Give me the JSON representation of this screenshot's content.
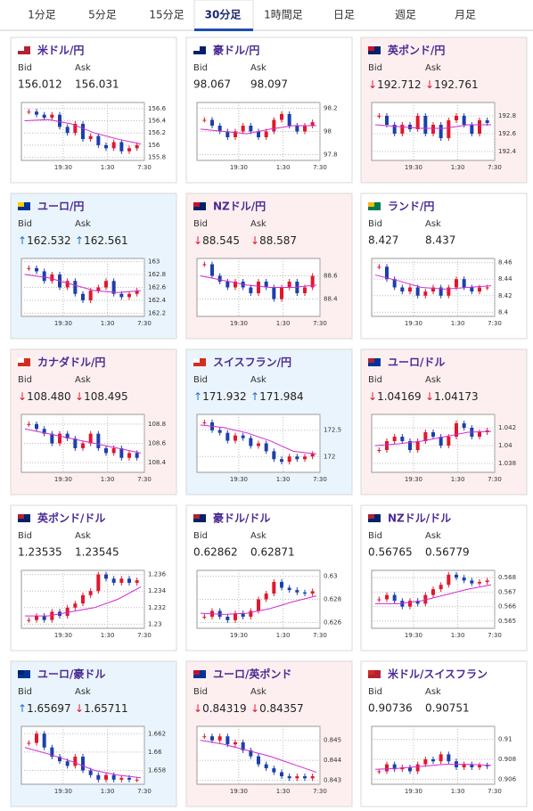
{
  "tabs": [
    "1分足",
    "5分足",
    "15分足",
    "30分足",
    "1時間足",
    "日足",
    "週足",
    "月足"
  ],
  "active_tab": 3,
  "labels": {
    "bid": "Bid",
    "ask": "Ask"
  },
  "x_labels": [
    "19:30",
    "1:30",
    "7:30"
  ],
  "colors": {
    "up": "#e0182d",
    "down": "#1b3fae",
    "ma": "#d22ad2",
    "arrow_up": "#1b6fd0",
    "arrow_down": "#e0182d"
  },
  "cards": [
    {
      "title": "米ドル/円",
      "bid": "156.012",
      "ask": "156.031",
      "background": "#ffffff",
      "chart": {
        "ylim": [
          155.75,
          156.7
        ],
        "yticks": [
          155.8,
          156,
          156.2,
          156.4,
          156.6
        ],
        "close": [
          156.55,
          156.5,
          156.45,
          156.5,
          156.3,
          156.2,
          156.35,
          156.1,
          156.15,
          156.0,
          155.95,
          156.05,
          155.9,
          155.95,
          156.0
        ],
        "ma": [
          156.4,
          156.42,
          156.35,
          156.2,
          156.1,
          156.02
        ]
      }
    },
    {
      "title": "豪ドル/円",
      "bid": "98.067",
      "ask": "98.097",
      "background": "#ffffff",
      "chart": {
        "ylim": [
          97.75,
          98.25
        ],
        "yticks": [
          97.8,
          98,
          98.2
        ],
        "close": [
          98.1,
          98.05,
          98.0,
          97.95,
          98.0,
          98.05,
          98.0,
          97.95,
          98.0,
          98.1,
          98.15,
          98.05,
          98.0,
          98.05,
          98.08
        ],
        "ma": [
          98.02,
          98.0,
          97.98,
          98.02,
          98.05,
          98.05
        ]
      }
    },
    {
      "title": "英ポンド/円",
      "bid": "↓192.712",
      "ask": "↓192.761",
      "background": "#fdeff0",
      "chart": {
        "ylim": [
          192.3,
          192.95
        ],
        "yticks": [
          192.4,
          192.6,
          192.8
        ],
        "close": [
          192.8,
          192.7,
          192.6,
          192.7,
          192.65,
          192.8,
          192.6,
          192.7,
          192.55,
          192.75,
          192.8,
          192.7,
          192.6,
          192.75,
          192.72
        ],
        "ma": [
          192.7,
          192.68,
          192.66,
          192.66,
          192.7,
          192.7
        ]
      }
    },
    {
      "title": "ユーロ/円",
      "bid": "↑162.532",
      "ask": "↑162.561",
      "background": "#eaf4fc",
      "chart": {
        "ylim": [
          162.15,
          163.05
        ],
        "yticks": [
          162.2,
          162.4,
          162.6,
          162.8,
          163
        ],
        "close": [
          162.9,
          162.85,
          162.7,
          162.8,
          162.6,
          162.7,
          162.5,
          162.4,
          162.55,
          162.6,
          162.7,
          162.5,
          162.45,
          162.5,
          162.55
        ],
        "ma": [
          162.8,
          162.75,
          162.65,
          162.55,
          162.52,
          162.55
        ]
      }
    },
    {
      "title": "NZドル/円",
      "bid": "↓88.545",
      "ask": "↓88.587",
      "background": "#fdeff0",
      "chart": {
        "ylim": [
          88.25,
          88.75
        ],
        "yticks": [
          88.4,
          88.6
        ],
        "close": [
          88.7,
          88.6,
          88.55,
          88.5,
          88.55,
          88.5,
          88.45,
          88.55,
          88.5,
          88.4,
          88.5,
          88.55,
          88.45,
          88.5,
          88.6
        ],
        "ma": [
          88.6,
          88.56,
          88.52,
          88.5,
          88.5,
          88.52
        ]
      }
    },
    {
      "title": "ランド/円",
      "bid": "8.427",
      "ask": "8.437",
      "background": "#ffffff",
      "chart": {
        "ylim": [
          8.395,
          8.465
        ],
        "yticks": [
          8.4,
          8.42,
          8.44,
          8.46
        ],
        "close": [
          8.455,
          8.44,
          8.43,
          8.425,
          8.43,
          8.42,
          8.425,
          8.43,
          8.42,
          8.43,
          8.44,
          8.43,
          8.425,
          8.43,
          8.43
        ],
        "ma": [
          8.445,
          8.438,
          8.43,
          8.428,
          8.43,
          8.432
        ]
      }
    },
    {
      "title": "カナダドル/円",
      "bid": "↓108.480",
      "ask": "↓108.495",
      "background": "#fdeff0",
      "chart": {
        "ylim": [
          108.3,
          108.9
        ],
        "yticks": [
          108.4,
          108.6,
          108.8
        ],
        "close": [
          108.8,
          108.75,
          108.7,
          108.6,
          108.7,
          108.65,
          108.55,
          108.6,
          108.7,
          108.55,
          108.5,
          108.55,
          108.45,
          108.5,
          108.45
        ],
        "ma": [
          108.75,
          108.7,
          108.65,
          108.6,
          108.55,
          108.5
        ]
      }
    },
    {
      "title": "スイスフラン/円",
      "bid": "↑171.932",
      "ask": "↑171.984",
      "background": "#eaf4fc",
      "chart": {
        "ylim": [
          171.7,
          172.8
        ],
        "yticks": [
          172,
          172.5
        ],
        "close": [
          172.65,
          172.5,
          172.45,
          172.3,
          172.4,
          172.35,
          172.2,
          172.25,
          172.1,
          171.95,
          171.9,
          172.0,
          171.95,
          172.0,
          172.05
        ],
        "ma": [
          172.6,
          172.55,
          172.45,
          172.3,
          172.1,
          172.05
        ]
      }
    },
    {
      "title": "ユーロ/ドル",
      "bid": "↓1.04169",
      "ask": "↓1.04173",
      "background": "#fdeff0",
      "chart": {
        "ylim": [
          1.037,
          1.0435
        ],
        "yticks": [
          1.038,
          1.04,
          1.042
        ],
        "close": [
          1.0395,
          1.0405,
          1.041,
          1.0405,
          1.0395,
          1.0405,
          1.0415,
          1.041,
          1.04,
          1.041,
          1.0425,
          1.042,
          1.041,
          1.0415,
          1.0417
        ],
        "ma": [
          1.04,
          1.0402,
          1.0405,
          1.041,
          1.0415,
          1.0416
        ]
      }
    },
    {
      "title": "英ポンド/ドル",
      "bid": "1.23535",
      "ask": "1.23545",
      "background": "#ffffff",
      "chart": {
        "ylim": [
          1.2295,
          1.2365
        ],
        "yticks": [
          1.23,
          1.232,
          1.234,
          1.236
        ],
        "close": [
          1.2305,
          1.231,
          1.2305,
          1.2315,
          1.231,
          1.232,
          1.2325,
          1.2335,
          1.234,
          1.236,
          1.2355,
          1.235,
          1.2355,
          1.235,
          1.2353
        ],
        "ma": [
          1.231,
          1.231,
          1.2315,
          1.232,
          1.233,
          1.2345
        ]
      }
    },
    {
      "title": "豪ドル/ドル",
      "bid": "0.62862",
      "ask": "0.62871",
      "background": "#ffffff",
      "chart": {
        "ylim": [
          0.6255,
          0.6305
        ],
        "yticks": [
          0.626,
          0.628,
          0.63
        ],
        "close": [
          0.6265,
          0.627,
          0.6265,
          0.6262,
          0.6268,
          0.6265,
          0.627,
          0.628,
          0.6285,
          0.6295,
          0.629,
          0.6288,
          0.6286,
          0.6285,
          0.6287
        ],
        "ma": [
          0.6268,
          0.6267,
          0.6268,
          0.6272,
          0.6278,
          0.6283
        ]
      }
    },
    {
      "title": "NZドル/ドル",
      "bid": "0.56765",
      "ask": "0.56779",
      "background": "#ffffff",
      "chart": {
        "ylim": [
          0.5645,
          0.5685
        ],
        "yticks": [
          0.565,
          0.566,
          0.567,
          0.568
        ],
        "close": [
          0.5665,
          0.5668,
          0.5664,
          0.566,
          0.5664,
          0.5662,
          0.5668,
          0.5672,
          0.5675,
          0.5682,
          0.568,
          0.5678,
          0.5676,
          0.5677,
          0.5678
        ],
        "ma": [
          0.5662,
          0.5662,
          0.5664,
          0.5668,
          0.5672,
          0.5675
        ]
      }
    },
    {
      "title": "ユーロ/豪ドル",
      "bid": "↑1.65697",
      "ask": "↓1.65711",
      "background": "#eaf4fc",
      "chart": {
        "ylim": [
          1.6565,
          1.6628
        ],
        "yticks": [
          1.658,
          1.66,
          1.662
        ],
        "close": [
          1.661,
          1.662,
          1.6605,
          1.6595,
          1.659,
          1.6585,
          1.6595,
          1.658,
          1.6575,
          1.657,
          1.6575,
          1.657,
          1.6572,
          1.657,
          1.657
        ],
        "ma": [
          1.6605,
          1.6598,
          1.659,
          1.658,
          1.6575,
          1.6572
        ]
      }
    },
    {
      "title": "ユーロ/英ポンド",
      "bid": "↓0.84319",
      "ask": "↓0.84357",
      "background": "#fdeff0",
      "chart": {
        "ylim": [
          0.8428,
          0.8457
        ],
        "yticks": [
          0.843,
          0.844,
          0.845
        ],
        "close": [
          0.8452,
          0.845,
          0.8452,
          0.8448,
          0.8449,
          0.8445,
          0.8442,
          0.8438,
          0.8436,
          0.8434,
          0.8432,
          0.8431,
          0.8432,
          0.8431,
          0.8432
        ],
        "ma": [
          0.845,
          0.8448,
          0.8445,
          0.8442,
          0.8438,
          0.8434
        ]
      }
    },
    {
      "title": "米ドル/スイスフラン",
      "bid": "0.90736",
      "ask": "0.90751",
      "background": "#ffffff",
      "chart": {
        "ylim": [
          0.9055,
          0.9113
        ],
        "yticks": [
          0.906,
          0.908,
          0.91
        ],
        "close": [
          0.9068,
          0.9075,
          0.907,
          0.9072,
          0.9068,
          0.9075,
          0.908,
          0.9078,
          0.9085,
          0.9078,
          0.9072,
          0.9075,
          0.9072,
          0.9074,
          0.9073
        ],
        "ma": [
          0.907,
          0.9071,
          0.9073,
          0.9075,
          0.9075,
          0.9074
        ]
      }
    }
  ]
}
